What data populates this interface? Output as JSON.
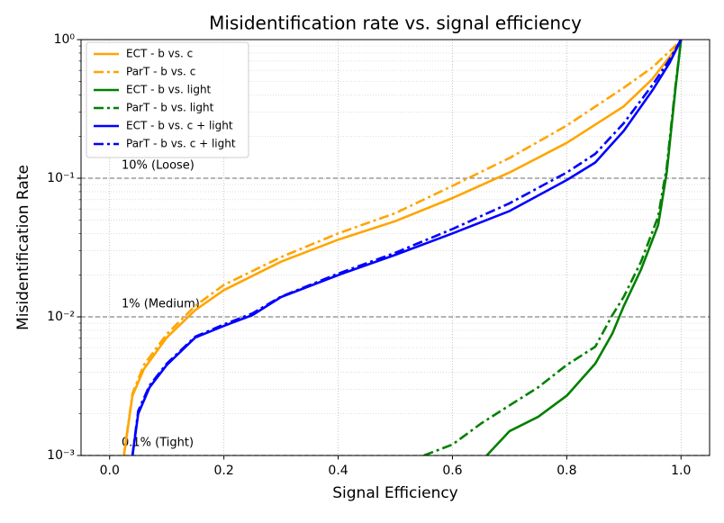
{
  "chart_data": {
    "type": "line",
    "title": "Misidentification rate vs. signal efficiency",
    "x_label": "Signal Efficiency",
    "y_label": "Misidentification Rate",
    "xlim": [
      -0.05,
      1.05
    ],
    "ylim": [
      0.001,
      1
    ],
    "y_scale": "log",
    "grid": true,
    "minor_grid": true,
    "legend_position": "upper left",
    "xticks": [
      {
        "value": 0,
        "label": "0.0"
      },
      0.2,
      0.4,
      0.6,
      0.8,
      {
        "value": 1,
        "label": "1.0"
      }
    ],
    "yticks": [
      {
        "value": 0.001,
        "label": "10⁻³"
      },
      {
        "value": 0.01,
        "label": "10⁻²"
      },
      {
        "value": 0.1,
        "label": "10⁻¹"
      },
      {
        "value": 1,
        "label": "10⁰"
      }
    ],
    "reference_lines": [
      {
        "value": 0.1,
        "label": "10% (Loose)"
      },
      {
        "value": 0.01,
        "label": "1% (Medium)"
      },
      {
        "value": 0.001,
        "label": "0.1% (Tight)"
      }
    ],
    "series": [
      {
        "name": "ECT - b vs. c",
        "color": "#ffa500",
        "style": "solid",
        "x": [
          0.025,
          0.04,
          0.06,
          0.1,
          0.15,
          0.2,
          0.3,
          0.4,
          0.5,
          0.6,
          0.7,
          0.8,
          0.9,
          0.95,
          0.99,
          1.0
        ],
        "values": [
          0.001,
          0.0027,
          0.0042,
          0.0071,
          0.0112,
          0.0156,
          0.025,
          0.036,
          0.049,
          0.072,
          0.11,
          0.18,
          0.33,
          0.52,
          0.85,
          1
        ]
      },
      {
        "name": "ParT - b vs. c",
        "color": "#ffa500",
        "style": "dashdot",
        "x": [
          0.025,
          0.04,
          0.06,
          0.1,
          0.15,
          0.2,
          0.3,
          0.4,
          0.5,
          0.6,
          0.7,
          0.8,
          0.9,
          0.95,
          0.99,
          1.0
        ],
        "values": [
          0.001,
          0.0028,
          0.0045,
          0.0075,
          0.012,
          0.017,
          0.027,
          0.04,
          0.056,
          0.088,
          0.14,
          0.24,
          0.45,
          0.63,
          0.9,
          1
        ]
      },
      {
        "name": "ECT - b vs. light",
        "color": "#008000",
        "style": "solid",
        "x": [
          0.66,
          0.7,
          0.75,
          0.8,
          0.85,
          0.88,
          0.9,
          0.93,
          0.96,
          0.975,
          0.99,
          1.0
        ],
        "values": [
          0.001,
          0.0015,
          0.0019,
          0.0027,
          0.0046,
          0.0076,
          0.012,
          0.022,
          0.046,
          0.11,
          0.43,
          1
        ]
      },
      {
        "name": "ParT - b vs. light",
        "color": "#008000",
        "style": "dashdot",
        "x": [
          0.55,
          0.6,
          0.65,
          0.7,
          0.75,
          0.8,
          0.85,
          0.88,
          0.9,
          0.93,
          0.96,
          0.975,
          0.99,
          1.0
        ],
        "values": [
          0.001,
          0.0012,
          0.0017,
          0.0023,
          0.0031,
          0.0045,
          0.0061,
          0.0103,
          0.014,
          0.025,
          0.053,
          0.12,
          0.45,
          1
        ]
      },
      {
        "name": "ECT - b vs. c + light",
        "color": "#0000ff",
        "style": "solid",
        "x": [
          0.04,
          0.05,
          0.07,
          0.1,
          0.15,
          0.2,
          0.25,
          0.3,
          0.4,
          0.5,
          0.6,
          0.7,
          0.8,
          0.85,
          0.9,
          0.95,
          0.98,
          1.0
        ],
        "values": [
          0.001,
          0.002,
          0.0031,
          0.0045,
          0.0071,
          0.0086,
          0.0103,
          0.0139,
          0.02,
          0.028,
          0.04,
          0.058,
          0.097,
          0.13,
          0.22,
          0.43,
          0.68,
          1
        ]
      },
      {
        "name": "ParT - b vs. c + light",
        "color": "#0000ff",
        "style": "dashdot",
        "x": [
          0.04,
          0.05,
          0.07,
          0.1,
          0.15,
          0.2,
          0.25,
          0.3,
          0.4,
          0.5,
          0.6,
          0.7,
          0.8,
          0.85,
          0.9,
          0.95,
          0.98,
          1.0
        ],
        "values": [
          0.001,
          0.0021,
          0.0032,
          0.0046,
          0.0072,
          0.0088,
          0.0106,
          0.014,
          0.0205,
          0.029,
          0.043,
          0.066,
          0.11,
          0.15,
          0.25,
          0.47,
          0.72,
          1
        ]
      }
    ]
  }
}
